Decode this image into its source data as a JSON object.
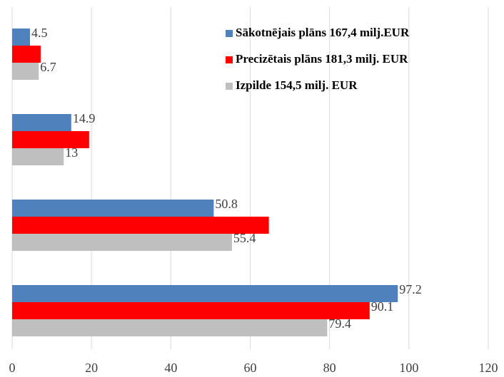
{
  "chart_data": {
    "type": "bar",
    "orientation": "horizontal",
    "categories": [
      null,
      null,
      null,
      null
    ],
    "series": [
      {
        "name": "Sākotnējais plāns 167,4 milj.EUR",
        "color": "#4f81bd",
        "values": [
          4.5,
          14.9,
          50.8,
          97.2
        ],
        "value_labels": [
          "4.5",
          "14.9",
          "50.8",
          "97.2"
        ]
      },
      {
        "name": "Precizētais plāns 181,3 milj. EUR",
        "color": "#ff0000",
        "values": [
          7.2,
          19.4,
          64.7,
          90.1
        ],
        "value_labels": [
          null,
          null,
          null,
          "90.1"
        ]
      },
      {
        "name": "Izpilde 154,5 milj. EUR",
        "color": "#bfbfbf",
        "values": [
          6.7,
          13,
          55.4,
          79.4
        ],
        "value_labels": [
          "6.7",
          "13",
          "55.4",
          "79.4"
        ]
      }
    ],
    "xlim": [
      0,
      120
    ],
    "xticks": [
      0,
      20,
      40,
      60,
      80,
      100,
      120
    ],
    "grid": true,
    "legend": "upper right"
  }
}
